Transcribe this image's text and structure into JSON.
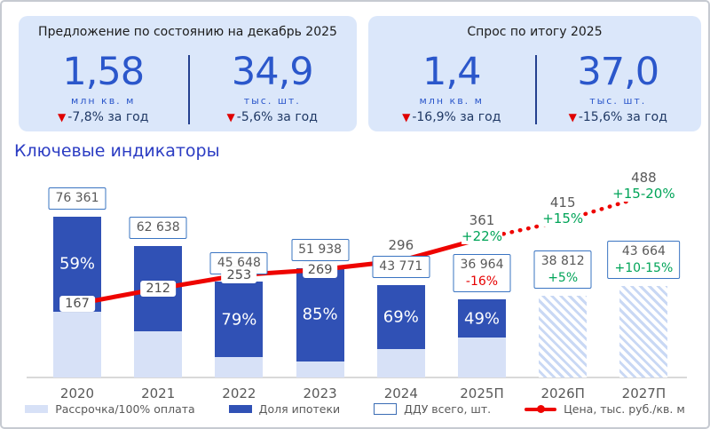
{
  "page": {
    "section_title": "Ключевые индикаторы"
  },
  "cards": [
    {
      "title": "Предложение по состоянию на декабрь 2025",
      "metrics": [
        {
          "value": "1,58",
          "unit": "млн кв. м",
          "arrow": "▼",
          "change": "-7,8% за год"
        },
        {
          "value": "34,9",
          "unit": "тыс. шт.",
          "arrow": "▼",
          "change": "-5,6% за год"
        }
      ]
    },
    {
      "title": "Спрос по итогу 2025",
      "metrics": [
        {
          "value": "1,4",
          "unit": "млн кв. м",
          "arrow": "▼",
          "change": "-16,9% за год"
        },
        {
          "value": "37,0",
          "unit": "тыс. шт.",
          "arrow": "▼",
          "change": "-15,6% за год"
        }
      ]
    }
  ],
  "legend": {
    "items": [
      {
        "label": "Рассрочка/100% оплата"
      },
      {
        "label": "Доля ипотеки"
      },
      {
        "label": "ДДУ всего, шт."
      },
      {
        "label": "Цена, тыс. руб./кв. м"
      }
    ]
  },
  "colors": {
    "mortgage_bar": "#3051b5",
    "installment_bar": "#d7e1f7",
    "price_line": "#ee0400",
    "positive_green": "#00a458",
    "negative_red": "#e60000",
    "accent_blue": "#2b57cb",
    "card_bg": "#dbe7fa",
    "gray_text": "#595959"
  },
  "chart_data": {
    "type": "combo: stacked bar (ДДУ) + price line",
    "title": "Ключевые индикаторы",
    "categories": [
      "2020",
      "2021",
      "2022",
      "2023",
      "2024",
      "2025П",
      "2026П",
      "2027П"
    ],
    "bars": {
      "ddu_total": [
        76361,
        62638,
        45648,
        51938,
        43771,
        36964,
        38812,
        43664
      ],
      "ddu_total_labels": [
        "76 361",
        "62 638",
        "45 648",
        "51 938",
        "43 771",
        "36 964",
        "38 812",
        "43 664"
      ],
      "ddu_total_change_labels": [
        "",
        "",
        "",
        "",
        "",
        "-16%",
        "+5%",
        "+10-15%"
      ],
      "mortgage_share_pct": [
        59,
        65,
        79,
        85,
        69,
        49,
        null,
        null
      ],
      "mortgage_share_labels": [
        "59%",
        "",
        "79%",
        "85%",
        "69%",
        "49%",
        "",
        ""
      ],
      "forecast_hatched": [
        false,
        false,
        false,
        false,
        false,
        false,
        true,
        true
      ]
    },
    "price_line": {
      "name": "Цена, тыс. руб./кв. м",
      "values": [
        167,
        212,
        253,
        269,
        296,
        361,
        415,
        488
      ],
      "value_labels": [
        "167",
        "212",
        "253",
        "269",
        "296",
        "361",
        "415",
        "488"
      ],
      "change_labels": [
        "",
        "",
        "",
        "",
        "",
        "+22%",
        "+15%",
        "+15-20%"
      ],
      "solid_until_index": 5,
      "legend_position": "bottom"
    }
  }
}
